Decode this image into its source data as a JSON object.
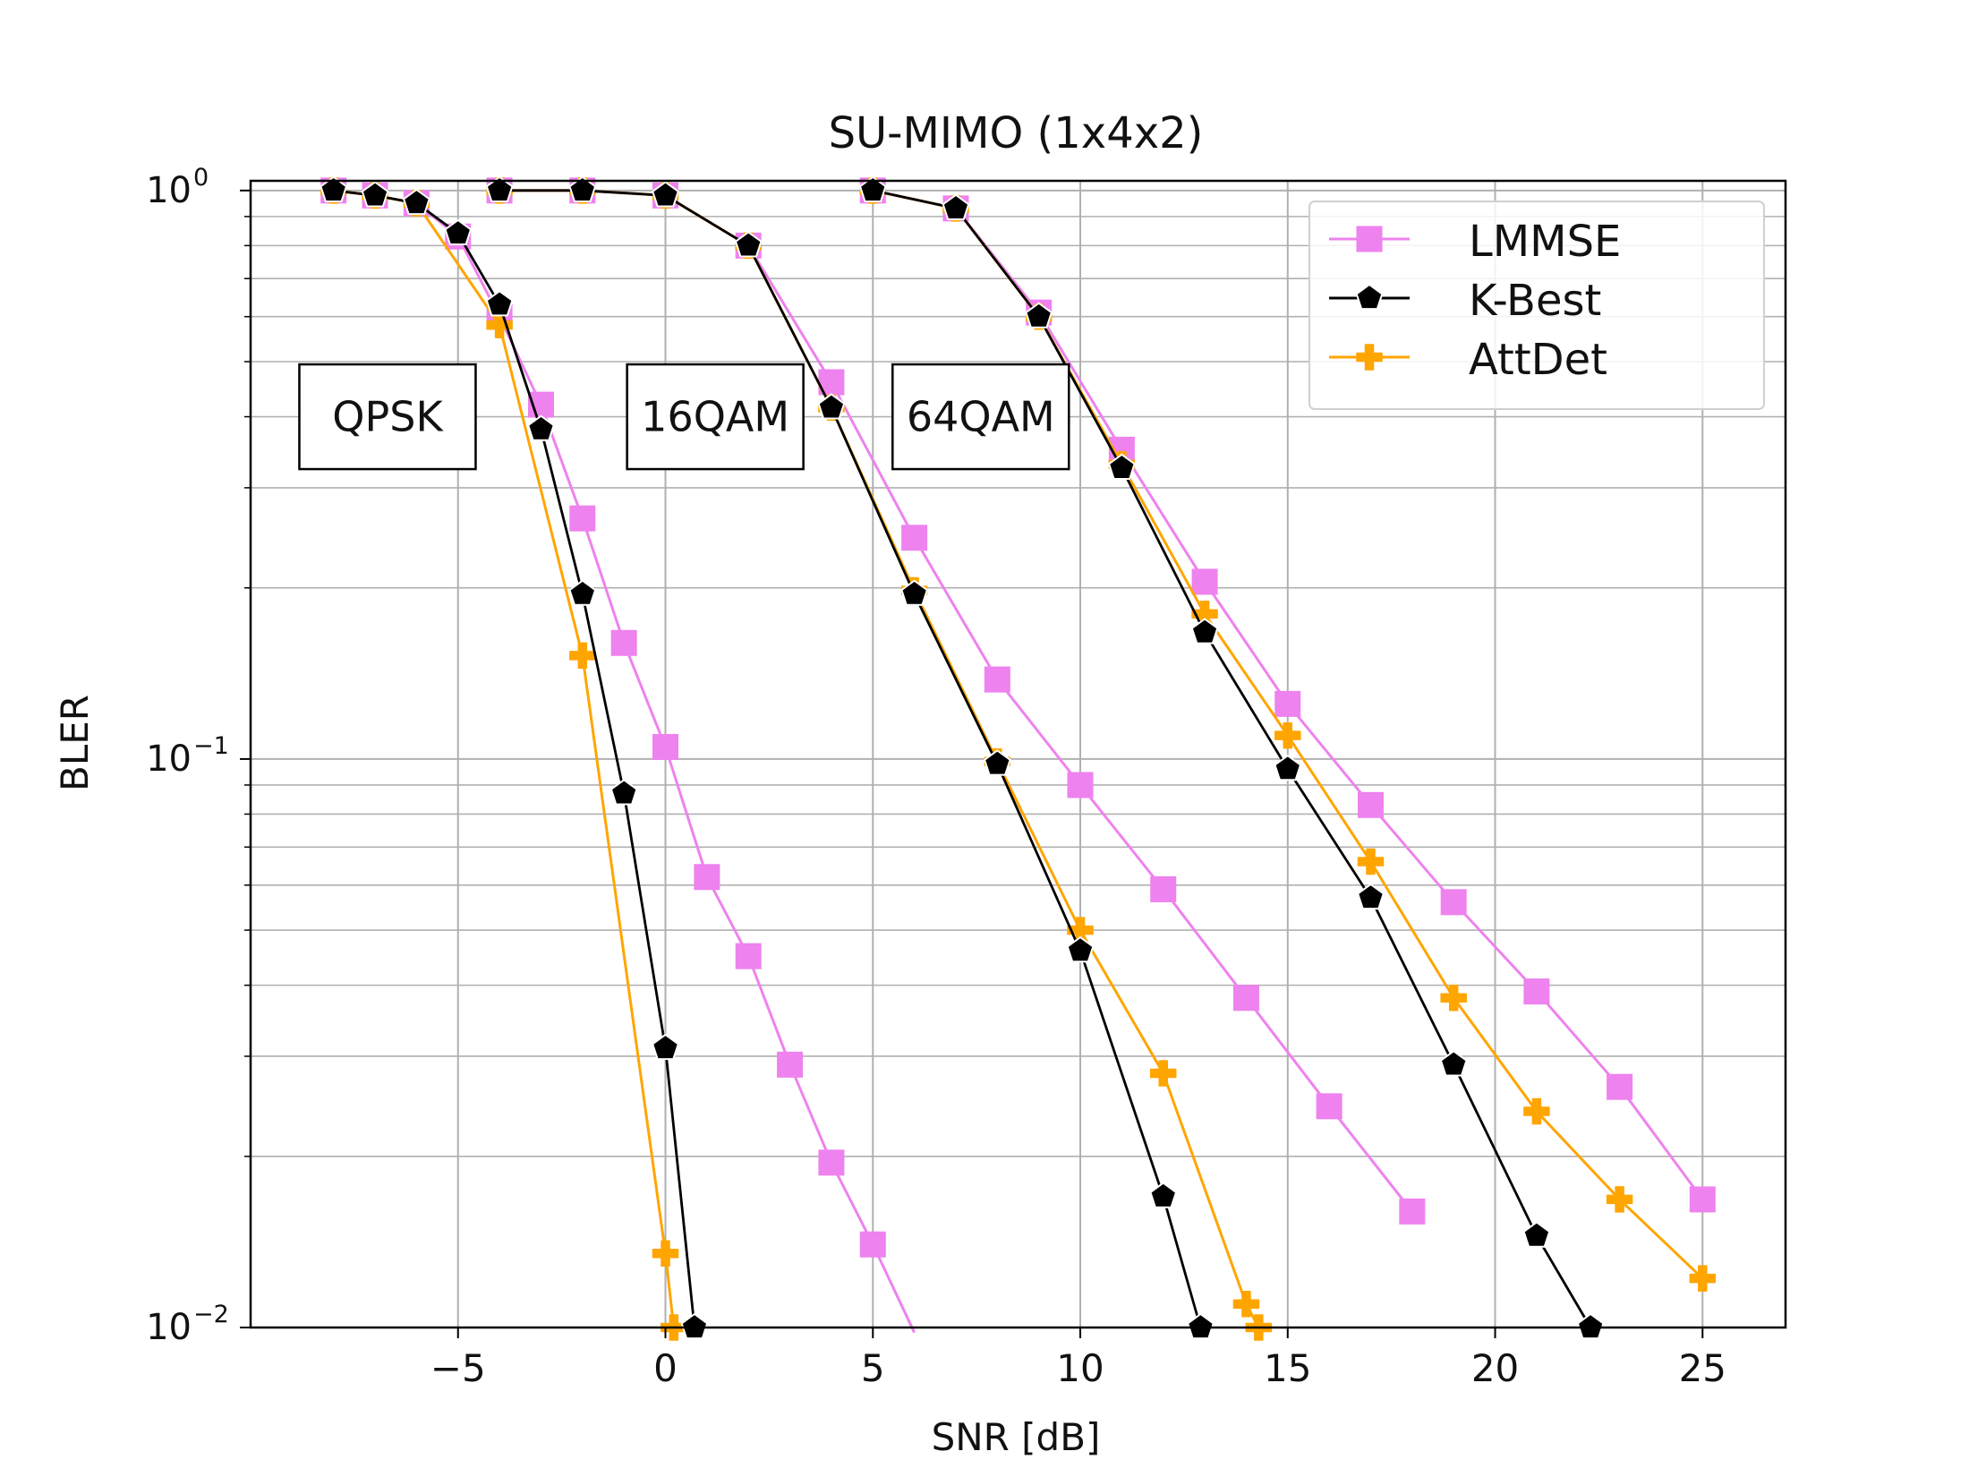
{
  "chart_data": {
    "type": "line",
    "title": "SU-MIMO (1x4x2)",
    "xlabel": "SNR [dB]",
    "ylabel": "BLER",
    "yscale": "log",
    "xlim": [
      -10,
      27
    ],
    "ylim": [
      0.01,
      1.04
    ],
    "xticks": [
      -5,
      0,
      5,
      10,
      15,
      20,
      25
    ],
    "xtick_labels": [
      "−5",
      "0",
      "5",
      "10",
      "15",
      "20",
      "25"
    ],
    "ytick_labels": [
      {
        "value": 1,
        "base": "10",
        "exp": "0"
      },
      {
        "value": 0.1,
        "base": "10",
        "exp": "−1"
      },
      {
        "value": 0.01,
        "base": "10",
        "exp": "−2"
      }
    ],
    "grid": true,
    "legend_position": "top-right",
    "legend": [
      {
        "name": "LMMSE",
        "color": "#ee82ee",
        "marker": "square"
      },
      {
        "name": "K-Best",
        "color": "#000000",
        "marker": "pentagon"
      },
      {
        "name": "AttDet",
        "color": "#ffa500",
        "marker": "plus"
      }
    ],
    "annotations": [
      {
        "text": "QPSK",
        "x": -6.7,
        "y": 0.4
      },
      {
        "text": "16QAM",
        "x": 1.2,
        "y": 0.4
      },
      {
        "text": "64QAM",
        "x": 7.6,
        "y": 0.4
      }
    ],
    "series": [
      {
        "name": "LMMSE",
        "group": "QPSK",
        "color": "#ee82ee",
        "marker": "square",
        "x": [
          -8,
          -7,
          -6,
          -5,
          -4,
          -3,
          -2,
          -1,
          0,
          1,
          2,
          3,
          4,
          5,
          6
        ],
        "y": [
          1.0,
          0.98,
          0.95,
          0.83,
          0.6,
          0.42,
          0.265,
          0.16,
          0.105,
          0.062,
          0.045,
          0.029,
          0.0195,
          0.014,
          0.0098
        ]
      },
      {
        "name": "K-Best",
        "group": "QPSK",
        "color": "#000000",
        "marker": "pentagon",
        "x": [
          -8,
          -7,
          -6,
          -5,
          -4,
          -3,
          -2,
          -1,
          0,
          0.7
        ],
        "y": [
          1.0,
          0.98,
          0.95,
          0.84,
          0.63,
          0.38,
          0.195,
          0.087,
          0.031,
          0.01
        ]
      },
      {
        "name": "AttDet",
        "group": "QPSK",
        "color": "#ffa500",
        "marker": "plus",
        "x": [
          -8,
          -7,
          -6,
          -4,
          -2,
          0,
          0.2
        ],
        "y": [
          1.0,
          0.98,
          0.95,
          0.58,
          0.152,
          0.0135,
          0.01
        ]
      },
      {
        "name": "LMMSE",
        "group": "16QAM",
        "color": "#ee82ee",
        "marker": "square",
        "x": [
          -4,
          -2,
          0,
          2,
          4,
          6,
          8,
          10,
          12,
          14,
          16,
          18
        ],
        "y": [
          1.0,
          1.0,
          0.98,
          0.8,
          0.46,
          0.245,
          0.138,
          0.09,
          0.059,
          0.038,
          0.0245,
          0.016
        ]
      },
      {
        "name": "K-Best",
        "group": "16QAM",
        "color": "#000000",
        "marker": "pentagon",
        "x": [
          -4,
          -2,
          0,
          2,
          4,
          6,
          8,
          10,
          12,
          12.9
        ],
        "y": [
          1.0,
          1.0,
          0.98,
          0.8,
          0.415,
          0.195,
          0.098,
          0.046,
          0.017,
          0.01
        ]
      },
      {
        "name": "AttDet",
        "group": "16QAM",
        "color": "#ffa500",
        "marker": "plus",
        "x": [
          -4,
          -2,
          0,
          2,
          4,
          6,
          8,
          10,
          12,
          14,
          14.3
        ],
        "y": [
          1.0,
          1.0,
          0.98,
          0.8,
          0.415,
          0.198,
          0.099,
          0.05,
          0.028,
          0.011,
          0.01
        ]
      },
      {
        "name": "LMMSE",
        "group": "64QAM",
        "color": "#ee82ee",
        "marker": "square",
        "x": [
          5,
          7,
          9,
          11,
          13,
          15,
          17,
          19,
          21,
          23,
          25
        ],
        "y": [
          1.0,
          0.93,
          0.61,
          0.35,
          0.205,
          0.125,
          0.083,
          0.056,
          0.039,
          0.0265,
          0.0168
        ]
      },
      {
        "name": "K-Best",
        "group": "64QAM",
        "color": "#000000",
        "marker": "pentagon",
        "x": [
          5,
          7,
          9,
          11,
          13,
          15,
          17,
          19,
          21,
          22.3
        ],
        "y": [
          1.0,
          0.93,
          0.6,
          0.325,
          0.167,
          0.096,
          0.057,
          0.029,
          0.0145,
          0.01
        ]
      },
      {
        "name": "AttDet",
        "group": "64QAM",
        "color": "#ffa500",
        "marker": "plus",
        "x": [
          5,
          7,
          9,
          11,
          13,
          15,
          17,
          19,
          21,
          23,
          25
        ],
        "y": [
          1.0,
          0.93,
          0.6,
          0.33,
          0.18,
          0.11,
          0.066,
          0.038,
          0.024,
          0.0168,
          0.0122
        ]
      }
    ]
  }
}
